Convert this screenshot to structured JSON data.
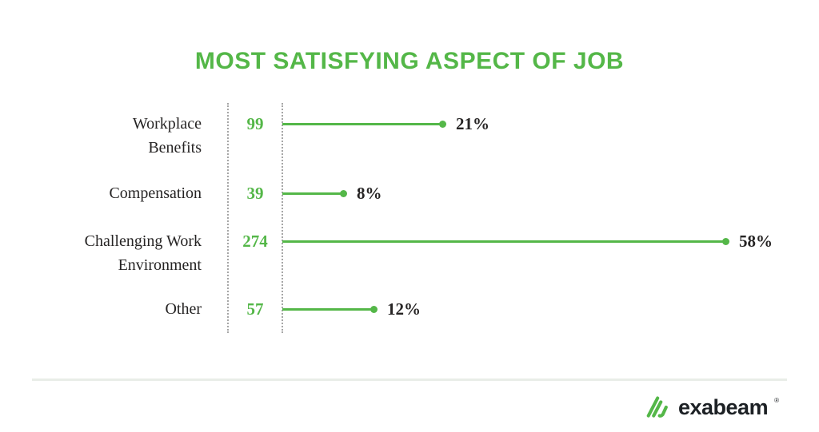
{
  "title": "MOST SATISFYING ASPECT OF JOB",
  "chart_data": {
    "type": "bar",
    "orientation": "horizontal",
    "title": "MOST SATISFYING ASPECT OF JOB",
    "categories": [
      "Workplace Benefits",
      "Compensation",
      "Challenging Work Environment",
      "Other"
    ],
    "series": [
      {
        "name": "respondent_count",
        "values": [
          99,
          39,
          274,
          57
        ]
      },
      {
        "name": "percent",
        "values": [
          21,
          8,
          58,
          12
        ]
      }
    ],
    "value_suffix": "%",
    "xlim": [
      0,
      60
    ],
    "grid": false,
    "legend": false
  },
  "rows": [
    {
      "label_lines": [
        "Workplace",
        "Benefits"
      ],
      "count": "99",
      "percent": 21,
      "percent_label": "21%"
    },
    {
      "label_lines": [
        "Compensation"
      ],
      "count": "39",
      "percent": 8,
      "percent_label": "8%"
    },
    {
      "label_lines": [
        "Challenging Work",
        "Environment"
      ],
      "count": "274",
      "percent": 58,
      "percent_label": "58%"
    },
    {
      "label_lines": [
        "Other"
      ],
      "count": "57",
      "percent": 12,
      "percent_label": "12%"
    }
  ],
  "footer": {
    "brand": "exabeam",
    "trademark": "®"
  },
  "colors": {
    "accent": "#54b748",
    "text_dark": "#262424",
    "dotted_line": "#a6a6a6",
    "divider": "#e9ede8",
    "logo_text": "#1d2125"
  }
}
